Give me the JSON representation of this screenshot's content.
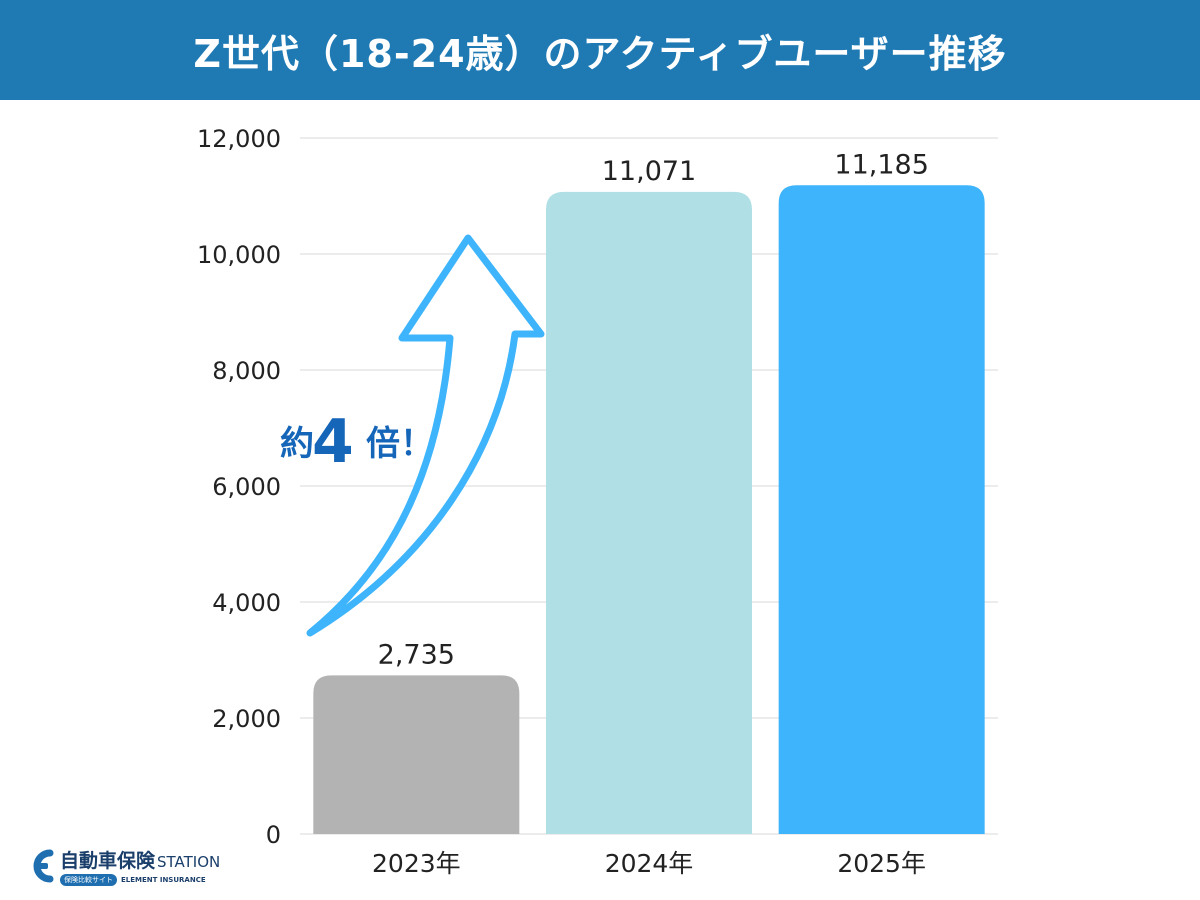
{
  "header": {
    "title": "Z世代（18-24歳）のアクティブユーザー推移"
  },
  "chart_data": {
    "type": "bar",
    "categories": [
      "2023年",
      "2024年",
      "2025年"
    ],
    "values": [
      2735,
      11071,
      11185
    ],
    "data_labels": [
      "2,735",
      "11,071",
      "11,185"
    ],
    "colors": [
      "#b3b3b3",
      "#b0dfe5",
      "#3db4fb"
    ],
    "ylim": [
      0,
      12000
    ],
    "yticks": [
      0,
      2000,
      4000,
      6000,
      8000,
      10000,
      12000
    ],
    "ytick_labels": [
      "0",
      "2,000",
      "4,000",
      "6,000",
      "8,000",
      "10,000",
      "12,000"
    ],
    "grid": true,
    "annotation": {
      "prefix": "約",
      "number": "4",
      "suffix": "倍！",
      "color": "#1565b8",
      "arrow_color": "#3db4fb"
    }
  },
  "logo": {
    "main": "自動車保険",
    "station": "STATION",
    "badge": "保険比較サイト",
    "sub": "ELEMENT INSURANCE"
  }
}
